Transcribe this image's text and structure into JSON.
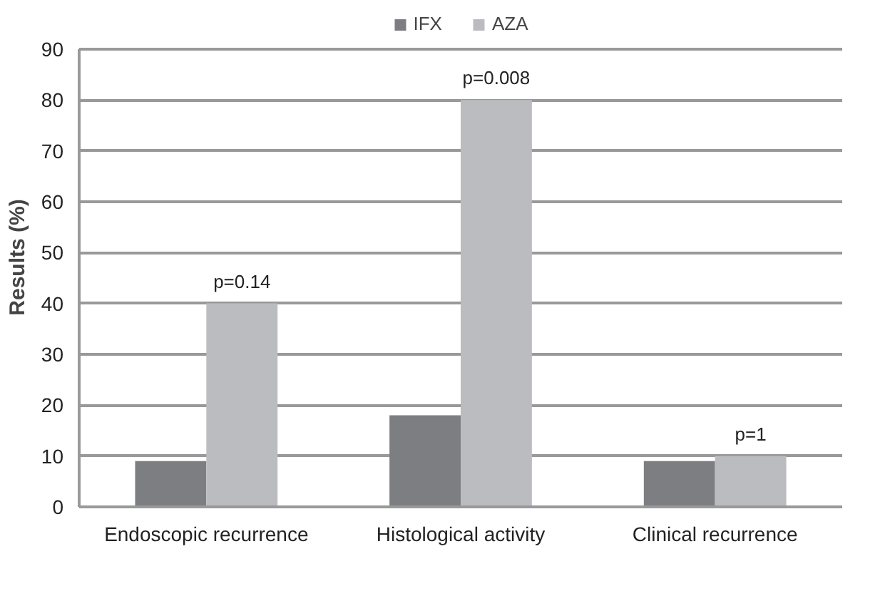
{
  "chart_data": {
    "type": "bar",
    "ylabel": "Results (%)",
    "categories": [
      "Endoscopic recurrence",
      "Histological activity",
      "Clinical recurrence"
    ],
    "series": [
      {
        "name": "IFX",
        "color": "#7d7e82",
        "values": [
          9,
          18,
          9
        ]
      },
      {
        "name": "AZA",
        "color": "#bbbcc0",
        "values": [
          40,
          80,
          10
        ]
      }
    ],
    "ylim": [
      0,
      90
    ],
    "yticks": [
      0,
      10,
      20,
      30,
      40,
      50,
      60,
      70,
      80,
      90
    ],
    "grid": "y",
    "legend": "top",
    "annotations": [
      {
        "text": "p=0.14",
        "x": "Endoscopic recurrence",
        "y": 40
      },
      {
        "text": "p=0.008",
        "x": "Histological activity",
        "y": 80
      },
      {
        "text": "p=1",
        "x": "Clinical recurrence",
        "y": 10
      }
    ]
  }
}
